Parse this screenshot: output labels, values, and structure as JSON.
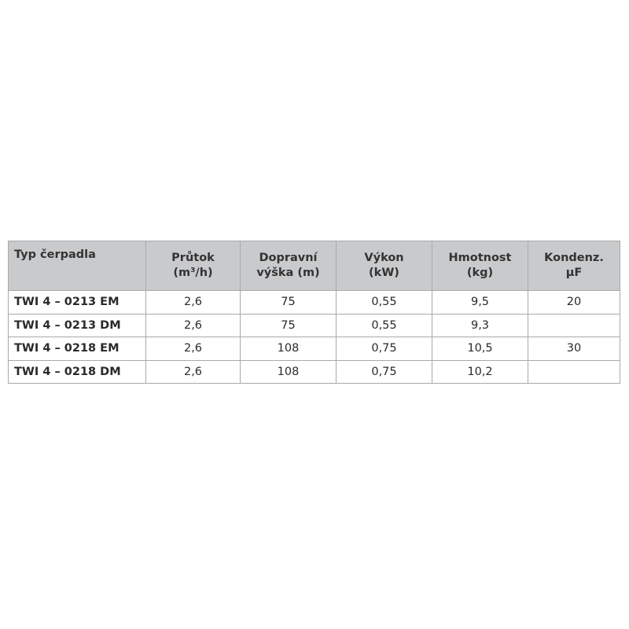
{
  "table": {
    "headers": [
      {
        "line1": "Typ čerpadla",
        "line2": ""
      },
      {
        "line1": "Průtok",
        "line2": "(m³/h)"
      },
      {
        "line1": "Dopravní",
        "line2": "výška (m)"
      },
      {
        "line1": "Výkon",
        "line2": "(kW)"
      },
      {
        "line1": "Hmotnost",
        "line2": "(kg)"
      },
      {
        "line1": "Kondenz.",
        "line2": "μF"
      }
    ],
    "rows": [
      [
        "TWI 4 – 0213 EM",
        "2,6",
        "75",
        "0,55",
        "9,5",
        "20"
      ],
      [
        "TWI 4 – 0213 DM",
        "2,6",
        "75",
        "0,55",
        "9,3",
        ""
      ],
      [
        "TWI 4 – 0218 EM",
        "2,6",
        "108",
        "0,75",
        "10,5",
        "30"
      ],
      [
        "TWI 4 – 0218 DM",
        "2,6",
        "108",
        "0,75",
        "10,2",
        ""
      ]
    ],
    "header_bg": "#c9cacc",
    "border_color": "#a8a9ab"
  }
}
